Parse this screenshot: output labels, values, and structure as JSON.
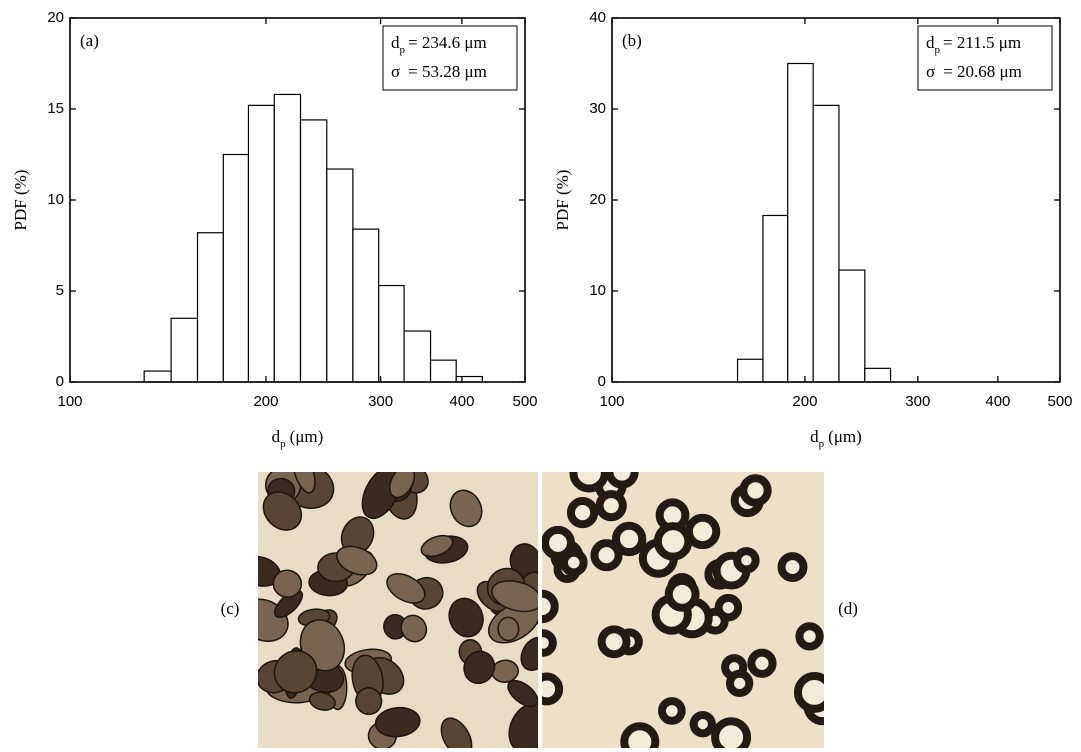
{
  "chart_data": [
    {
      "type": "histogram",
      "panel": "(a)",
      "ylabel": "PDF (%)",
      "xlabel": {
        "main": "d",
        "sub": "p",
        "unit": "(μm)"
      },
      "stats": [
        {
          "label": "d",
          "sub": "p",
          "value": "= 234.6 μm"
        },
        {
          "label": "σ",
          "value": "= 53.28 μm"
        }
      ],
      "bins": [
        130,
        143,
        157,
        172,
        188,
        206,
        226,
        248,
        272,
        298,
        326,
        358,
        392,
        430
      ],
      "values": [
        0.6,
        3.5,
        8.2,
        12.5,
        15.2,
        15.8,
        14.4,
        11.7,
        8.4,
        5.3,
        2.8,
        1.2,
        0.3
      ],
      "color": "#ffffff",
      "xscale": "log",
      "xlim": [
        100,
        500
      ],
      "xticks": [
        100,
        200,
        300,
        400,
        500
      ],
      "ylim": [
        0,
        20
      ],
      "yticks": [
        0,
        5,
        10,
        15,
        20
      ]
    },
    {
      "type": "histogram",
      "panel": "(b)",
      "ylabel": "PDF (%)",
      "xlabel": {
        "main": "d",
        "sub": "p",
        "unit": "(μm)"
      },
      "stats": [
        {
          "label": "d",
          "sub": "p",
          "value": "= 211.5 μm"
        },
        {
          "label": "σ",
          "value": "= 20.68 μm"
        }
      ],
      "bins": [
        157,
        172,
        188,
        206,
        226,
        248,
        272
      ],
      "values": [
        2.5,
        18.3,
        35.0,
        30.4,
        12.3,
        1.5
      ],
      "color": "#ffffff",
      "xscale": "log",
      "xlim": [
        100,
        500
      ],
      "xticks": [
        100,
        200,
        300,
        400,
        500
      ],
      "ylim": [
        0,
        40
      ],
      "yticks": [
        0,
        10,
        20,
        30,
        40
      ]
    }
  ],
  "images": [
    {
      "label": "(c)"
    },
    {
      "label": "(d)"
    }
  ]
}
